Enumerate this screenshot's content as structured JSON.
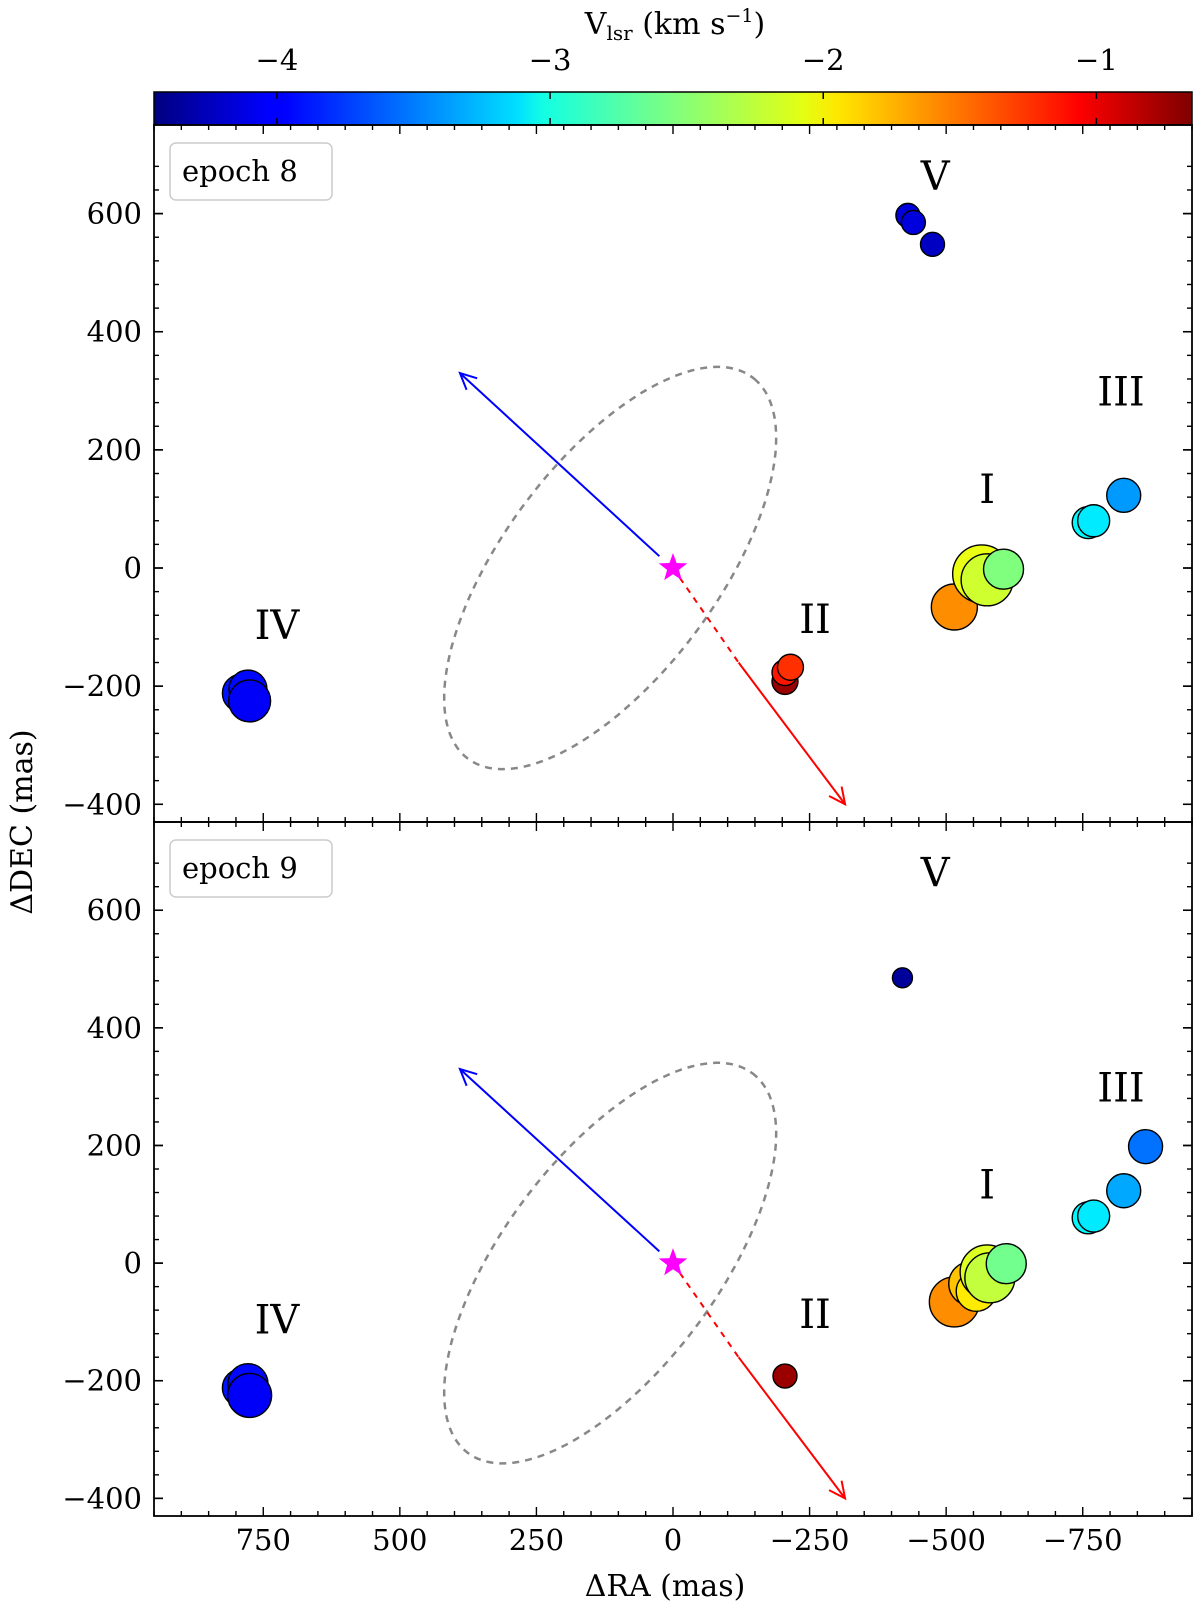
{
  "chart_data": {
    "type": "scatter",
    "xlabel": "ΔRA (mas)",
    "ylabel": "ΔDEC (mas)",
    "xlim": [
      950,
      -950
    ],
    "ylim": [
      -430,
      750
    ],
    "x_ticks": [
      750,
      500,
      250,
      0,
      -250,
      -500,
      -750
    ],
    "x_tick_labels": [
      "750",
      "500",
      "250",
      "0",
      "−250",
      "−500",
      "−750"
    ],
    "y_ticks": [
      -400,
      -200,
      0,
      200,
      400,
      600
    ],
    "y_tick_labels": [
      "−400",
      "−200",
      "0",
      "200",
      "400",
      "600"
    ],
    "colorbar": {
      "title_main": "V",
      "title_sub": "lsr",
      "title_unit": " (km s",
      "title_exp": "−1",
      "title_close": ")",
      "range": [
        -4.45,
        -0.65
      ],
      "ticks": [
        -4,
        -3,
        -2,
        -1
      ],
      "tick_labels": [
        "−4",
        "−3",
        "−2",
        "−1"
      ],
      "colormap": "jet"
    },
    "star": {
      "x": 0,
      "y": 0,
      "color": "#ff00ff"
    },
    "outflow": {
      "blue_arrow": {
        "from": [
          0,
          0
        ],
        "to": [
          390,
          330
        ],
        "solid_from": [
          25,
          20
        ],
        "color": "#0000ff"
      },
      "red_arrow": {
        "from": [
          0,
          0
        ],
        "to": [
          -315,
          -400
        ],
        "dashed_to": [
          -120,
          -160
        ],
        "color": "#ff0000"
      }
    },
    "ellipse": {
      "center": [
        115,
        0
      ],
      "semi_major": 415,
      "semi_minor": 190,
      "angle_deg": 50,
      "color": "#888888"
    },
    "panels": [
      {
        "label": "epoch 8",
        "regions": [
          {
            "name": "V",
            "x": -480,
            "y": 640
          },
          {
            "name": "III",
            "x": -820,
            "y": 275
          },
          {
            "name": "I",
            "x": -575,
            "y": 110
          },
          {
            "name": "II",
            "x": -260,
            "y": -110
          },
          {
            "name": "IV",
            "x": 725,
            "y": -120
          }
        ],
        "spots": [
          {
            "x": -430,
            "y": 597,
            "v": -4.1,
            "r": 12
          },
          {
            "x": -440,
            "y": 585,
            "v": -4.1,
            "r": 12
          },
          {
            "x": -475,
            "y": 548,
            "v": -4.2,
            "r": 12
          },
          {
            "x": -760,
            "y": 77,
            "v": -3.05,
            "r": 16
          },
          {
            "x": -770,
            "y": 80,
            "v": -3.1,
            "r": 16
          },
          {
            "x": -825,
            "y": 123,
            "v": -3.4,
            "r": 17
          },
          {
            "x": -515,
            "y": -66,
            "v": -1.65,
            "r": 23
          },
          {
            "x": -565,
            "y": -10,
            "v": -2.15,
            "r": 29
          },
          {
            "x": -575,
            "y": -20,
            "v": -2.25,
            "r": 26
          },
          {
            "x": -605,
            "y": -2,
            "v": -2.55,
            "r": 20
          },
          {
            "x": -205,
            "y": -192,
            "v": -0.75,
            "r": 13
          },
          {
            "x": -205,
            "y": -177,
            "v": -1.2,
            "r": 13
          },
          {
            "x": -215,
            "y": -168,
            "v": -1.3,
            "r": 13
          },
          {
            "x": 790,
            "y": -212,
            "v": -3.9,
            "r": 19
          },
          {
            "x": 778,
            "y": -205,
            "v": -3.95,
            "r": 19
          },
          {
            "x": 775,
            "y": -225,
            "v": -4.0,
            "r": 21
          }
        ]
      },
      {
        "label": "epoch 9",
        "regions": [
          {
            "name": "V",
            "x": -480,
            "y": 640
          },
          {
            "name": "III",
            "x": -820,
            "y": 275
          },
          {
            "name": "I",
            "x": -575,
            "y": 110
          },
          {
            "name": "II",
            "x": -260,
            "y": -110
          },
          {
            "name": "IV",
            "x": 725,
            "y": -120
          }
        ],
        "spots": [
          {
            "x": -420,
            "y": 485,
            "v": -4.35,
            "r": 10
          },
          {
            "x": -760,
            "y": 77,
            "v": -3.05,
            "r": 16
          },
          {
            "x": -770,
            "y": 80,
            "v": -3.1,
            "r": 16
          },
          {
            "x": -825,
            "y": 123,
            "v": -3.35,
            "r": 17
          },
          {
            "x": -865,
            "y": 198,
            "v": -3.55,
            "r": 17
          },
          {
            "x": -515,
            "y": -66,
            "v": -1.65,
            "r": 25
          },
          {
            "x": -545,
            "y": -35,
            "v": -1.85,
            "r": 22
          },
          {
            "x": -555,
            "y": -48,
            "v": -2.0,
            "r": 20
          },
          {
            "x": -575,
            "y": -15,
            "v": -2.2,
            "r": 27
          },
          {
            "x": -580,
            "y": -25,
            "v": -2.3,
            "r": 25
          },
          {
            "x": -610,
            "y": -1,
            "v": -2.6,
            "r": 20
          },
          {
            "x": -205,
            "y": -192,
            "v": -0.75,
            "r": 12
          },
          {
            "x": 790,
            "y": -212,
            "v": -3.9,
            "r": 19
          },
          {
            "x": 778,
            "y": -205,
            "v": -3.95,
            "r": 20
          },
          {
            "x": 775,
            "y": -225,
            "v": -4.0,
            "r": 22
          }
        ]
      }
    ]
  }
}
